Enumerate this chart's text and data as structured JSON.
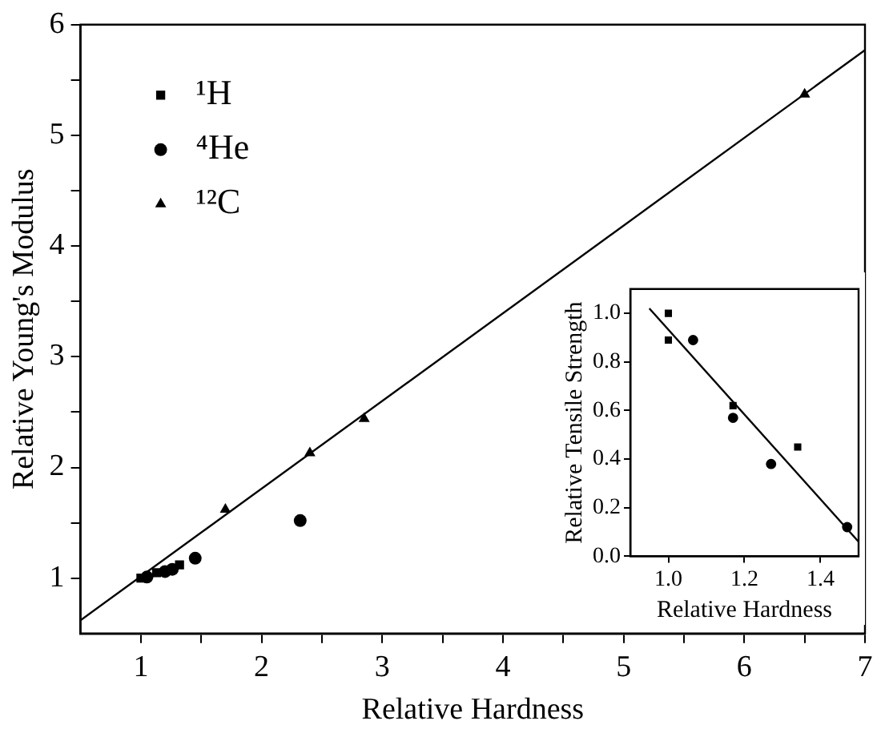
{
  "chart_data": [
    {
      "type": "scatter",
      "xlabel": "Relative Hardness",
      "ylabel": "Relative Young's Modulus",
      "xlim": [
        0.5,
        7
      ],
      "ylim": [
        0.5,
        6
      ],
      "xticks": [
        1,
        {
          "value": 1.5,
          "label": null
        },
        2,
        {
          "value": 2.5,
          "label": null
        },
        3,
        {
          "value": 3.5,
          "label": null
        },
        4,
        {
          "value": 4.5,
          "label": null
        },
        5,
        {
          "value": 5.5,
          "label": null
        },
        6,
        {
          "value": 6.5,
          "label": null
        },
        7
      ],
      "yticks": [
        1,
        {
          "value": 1.5,
          "label": null
        },
        2,
        {
          "value": 2.5,
          "label": null
        },
        3,
        {
          "value": 3.5,
          "label": null
        },
        4,
        {
          "value": 4.5,
          "label": null
        },
        5,
        {
          "value": 5.5,
          "label": null
        },
        6
      ],
      "grid": false,
      "legend": "top left",
      "series": [
        {
          "name": "¹H",
          "color": "#000000",
          "marker": "square",
          "x": [
            1.0,
            1.13,
            1.32
          ],
          "values": [
            1.0,
            1.05,
            1.12
          ]
        },
        {
          "name": "⁴He",
          "color": "#000000",
          "marker": "circle",
          "x": [
            1.05,
            1.2,
            1.26,
            1.45,
            2.32
          ],
          "values": [
            1.01,
            1.06,
            1.08,
            1.18,
            1.52
          ]
        },
        {
          "name": "¹²C",
          "color": "#000000",
          "marker": "triangle",
          "x": [
            1.7,
            2.4,
            2.85,
            6.5
          ],
          "values": [
            1.62,
            2.13,
            2.44,
            5.37
          ]
        },
        {
          "type": "line",
          "color": "#000000",
          "marker": "none",
          "x": [
            0.5,
            7
          ],
          "values": [
            0.62,
            5.77
          ]
        }
      ]
    },
    {
      "type": "scatter",
      "xlabel": "Relative Hardness",
      "ylabel": "Relative Tensile Strength",
      "xlim": [
        0.9,
        1.5
      ],
      "ylim": [
        0,
        1.1
      ],
      "xticks": [
        {
          "value": 1.0,
          "label": "1.0"
        },
        1.2,
        1.4
      ],
      "yticks": [
        {
          "value": 0,
          "label": "0.0"
        },
        0.2,
        0.4,
        0.6,
        0.8,
        {
          "value": 1.0,
          "label": "1.0"
        }
      ],
      "grid": false,
      "series": [
        {
          "color": "#000000",
          "marker": "square",
          "x": [
            1.0,
            1.0,
            1.17,
            1.34
          ],
          "values": [
            1.0,
            0.89,
            0.62,
            0.45
          ]
        },
        {
          "color": "#000000",
          "marker": "circle",
          "x": [
            1.065,
            1.17,
            1.27,
            1.47
          ],
          "values": [
            0.89,
            0.57,
            0.38,
            0.12
          ]
        },
        {
          "type": "line",
          "color": "#000000",
          "marker": "none",
          "x": [
            0.95,
            1.5
          ],
          "values": [
            1.02,
            0.06
          ]
        }
      ]
    }
  ]
}
